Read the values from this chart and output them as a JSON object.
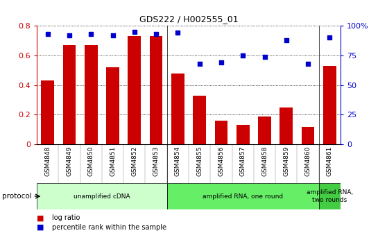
{
  "title": "GDS222 / H002555_01",
  "samples": [
    "GSM4848",
    "GSM4849",
    "GSM4850",
    "GSM4851",
    "GSM4852",
    "GSM4853",
    "GSM4854",
    "GSM4855",
    "GSM4856",
    "GSM4857",
    "GSM4858",
    "GSM4859",
    "GSM4860",
    "GSM4861"
  ],
  "log_ratio": [
    0.43,
    0.67,
    0.67,
    0.52,
    0.73,
    0.73,
    0.48,
    0.33,
    0.16,
    0.13,
    0.19,
    0.25,
    0.12,
    0.53
  ],
  "pct_rank": [
    93,
    92,
    93,
    92,
    95,
    93,
    94,
    68,
    69,
    75,
    74,
    88,
    68,
    90
  ],
  "bar_color": "#cc0000",
  "dot_color": "#0000cc",
  "ylim_left": [
    0,
    0.8
  ],
  "ylim_right": [
    0,
    100
  ],
  "yticks_left": [
    0,
    0.2,
    0.4,
    0.6,
    0.8
  ],
  "ytick_labels_left": [
    "0",
    "0.2",
    "0.4",
    "0.6",
    "0.8"
  ],
  "yticks_right": [
    0,
    25,
    50,
    75,
    100
  ],
  "ytick_labels_right": [
    "0",
    "25",
    "50",
    "75",
    "100%"
  ],
  "protocols": [
    {
      "label": "unamplified cDNA",
      "start": 0,
      "end": 6,
      "color": "#ccffcc"
    },
    {
      "label": "amplified RNA, one round",
      "start": 6,
      "end": 13,
      "color": "#66ee66"
    },
    {
      "label": "amplified RNA,\ntwo rounds",
      "start": 13,
      "end": 14,
      "color": "#44cc44"
    }
  ],
  "legend_bar_label": "log ratio",
  "legend_dot_label": "percentile rank within the sample",
  "xlabel_protocol": "protocol",
  "background_color": "#ffffff",
  "tick_color_left": "#cc0000",
  "tick_color_right": "#0000cc",
  "xtick_bg": "#d0d0d0",
  "plot_bg": "#ffffff"
}
